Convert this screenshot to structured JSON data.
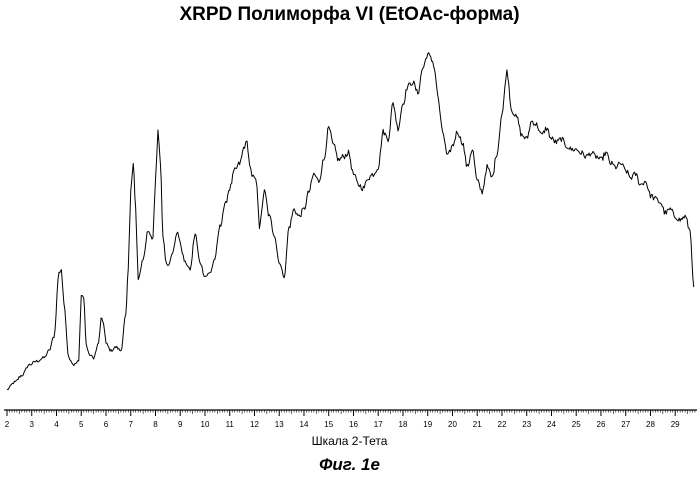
{
  "chart_data": {
    "type": "line",
    "title": "XRPD Полиморфа VI (EtOAc-форма)",
    "xlabel": "Шкала 2-Тета",
    "ylabel": "",
    "xlim": [
      2,
      29.8
    ],
    "ylim": [
      0,
      100
    ],
    "grid": false,
    "legend": "none",
    "x_ticks": [
      2,
      3,
      4,
      5,
      6,
      7,
      8,
      9,
      10,
      11,
      12,
      13,
      14,
      15,
      16,
      17,
      18,
      19,
      20,
      21,
      22,
      23,
      24,
      25,
      26,
      27,
      28,
      29
    ],
    "series": [
      {
        "color": "#000000",
        "x": [
          2.0,
          2.3,
          2.6,
          2.9,
          3.2,
          3.5,
          3.7,
          3.9,
          4.1,
          4.2,
          4.3,
          4.5,
          4.7,
          4.9,
          5.0,
          5.1,
          5.2,
          5.3,
          5.5,
          5.7,
          5.8,
          5.9,
          6.0,
          6.2,
          6.4,
          6.6,
          6.8,
          6.9,
          7.0,
          7.1,
          7.2,
          7.3,
          7.5,
          7.7,
          7.9,
          8.0,
          8.1,
          8.2,
          8.3,
          8.4,
          8.5,
          8.7,
          8.9,
          9.0,
          9.2,
          9.4,
          9.6,
          9.8,
          10.0,
          10.2,
          10.4,
          10.6,
          10.8,
          11.0,
          11.2,
          11.4,
          11.6,
          11.7,
          11.8,
          11.9,
          12.0,
          12.1,
          12.2,
          12.4,
          12.6,
          12.8,
          13.0,
          13.2,
          13.4,
          13.6,
          13.8,
          14.0,
          14.2,
          14.4,
          14.6,
          14.8,
          15.0,
          15.2,
          15.4,
          15.6,
          15.8,
          16.0,
          16.2,
          16.4,
          16.6,
          16.8,
          17.0,
          17.2,
          17.4,
          17.6,
          17.8,
          18.0,
          18.2,
          18.4,
          18.6,
          18.8,
          19.0,
          19.2,
          19.3,
          19.4,
          19.6,
          19.8,
          20.0,
          20.2,
          20.4,
          20.6,
          20.8,
          21.0,
          21.2,
          21.4,
          21.6,
          21.8,
          22.0,
          22.2,
          22.4,
          22.6,
          22.8,
          23.0,
          23.2,
          23.4,
          23.6,
          23.8,
          24.0,
          24.2,
          24.4,
          24.6,
          24.8,
          25.0,
          25.2,
          25.4,
          25.6,
          25.8,
          26.0,
          26.2,
          26.4,
          26.6,
          26.8,
          27.0,
          27.2,
          27.4,
          27.6,
          27.8,
          28.0,
          28.2,
          28.4,
          28.6,
          28.8,
          29.0,
          29.2,
          29.4,
          29.6,
          29.75
        ],
        "y": [
          1,
          3,
          5,
          8,
          9,
          10,
          12,
          16,
          34,
          35,
          25,
          10,
          8,
          9,
          28,
          27,
          14,
          11,
          10,
          14,
          21,
          20,
          14,
          12,
          13,
          12,
          22,
          35,
          58,
          65,
          52,
          32,
          38,
          46,
          44,
          60,
          74,
          65,
          45,
          38,
          36,
          40,
          46,
          42,
          37,
          35,
          45,
          37,
          33,
          34,
          38,
          47,
          53,
          58,
          63,
          65,
          70,
          71,
          65,
          61,
          61,
          59,
          47,
          57,
          50,
          45,
          37,
          33,
          47,
          52,
          50,
          52,
          57,
          62,
          60,
          66,
          75,
          70,
          66,
          67,
          68,
          62,
          59,
          58,
          61,
          62,
          64,
          74,
          72,
          82,
          75,
          82,
          87,
          88,
          85,
          92,
          96,
          94,
          91,
          84,
          74,
          67,
          70,
          74,
          71,
          64,
          69,
          60,
          57,
          64,
          61,
          68,
          79,
          91,
          80,
          78,
          73,
          72,
          77,
          76,
          73,
          75,
          72,
          71,
          72,
          70,
          69,
          69,
          68,
          67,
          68,
          67,
          66,
          68,
          65,
          64,
          65,
          63,
          61,
          62,
          59,
          60,
          56,
          55,
          54,
          51,
          52,
          50,
          49,
          50,
          46,
          30
        ]
      }
    ]
  },
  "caption": "Фиг. 1е"
}
